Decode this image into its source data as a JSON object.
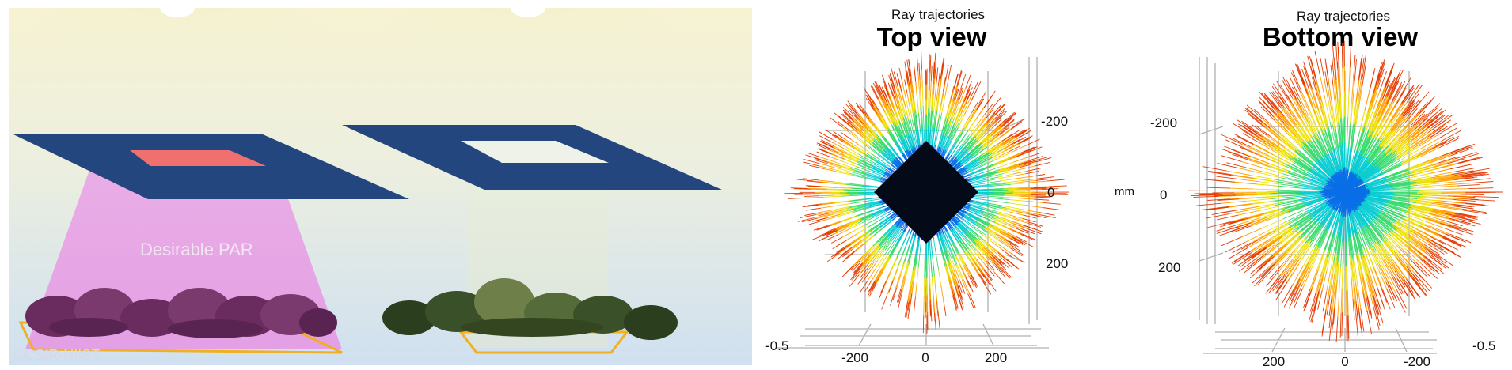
{
  "scene": {
    "par_label": "Desirable PAR",
    "credit": "©CSIR-NIIST"
  },
  "top_view": {
    "subtitle": "Ray trajectories",
    "title": "Top view",
    "right_axis_ticks": [
      "-200",
      "0",
      "200"
    ],
    "unit": "mm",
    "bottom_axis_ticks": [
      "-200",
      "0",
      "200"
    ],
    "bottom_axis_end": "-0.5"
  },
  "bottom_view": {
    "subtitle": "Ray trajectories",
    "title": "Bottom view",
    "left_axis_ticks": [
      "-200",
      "0",
      "200"
    ],
    "bottom_axis_ticks": [
      "200",
      "0",
      "-200"
    ],
    "bottom_axis_end": "-0.5"
  },
  "colors": {
    "panel_blue": "#24467f",
    "red_square": "#f07070",
    "par_pink": "#e9a6e6",
    "ray_red": "#d40000",
    "ray_yellow": "#ffe000",
    "ray_cyan": "#00c8f0",
    "ray_blue": "#1030e0"
  }
}
